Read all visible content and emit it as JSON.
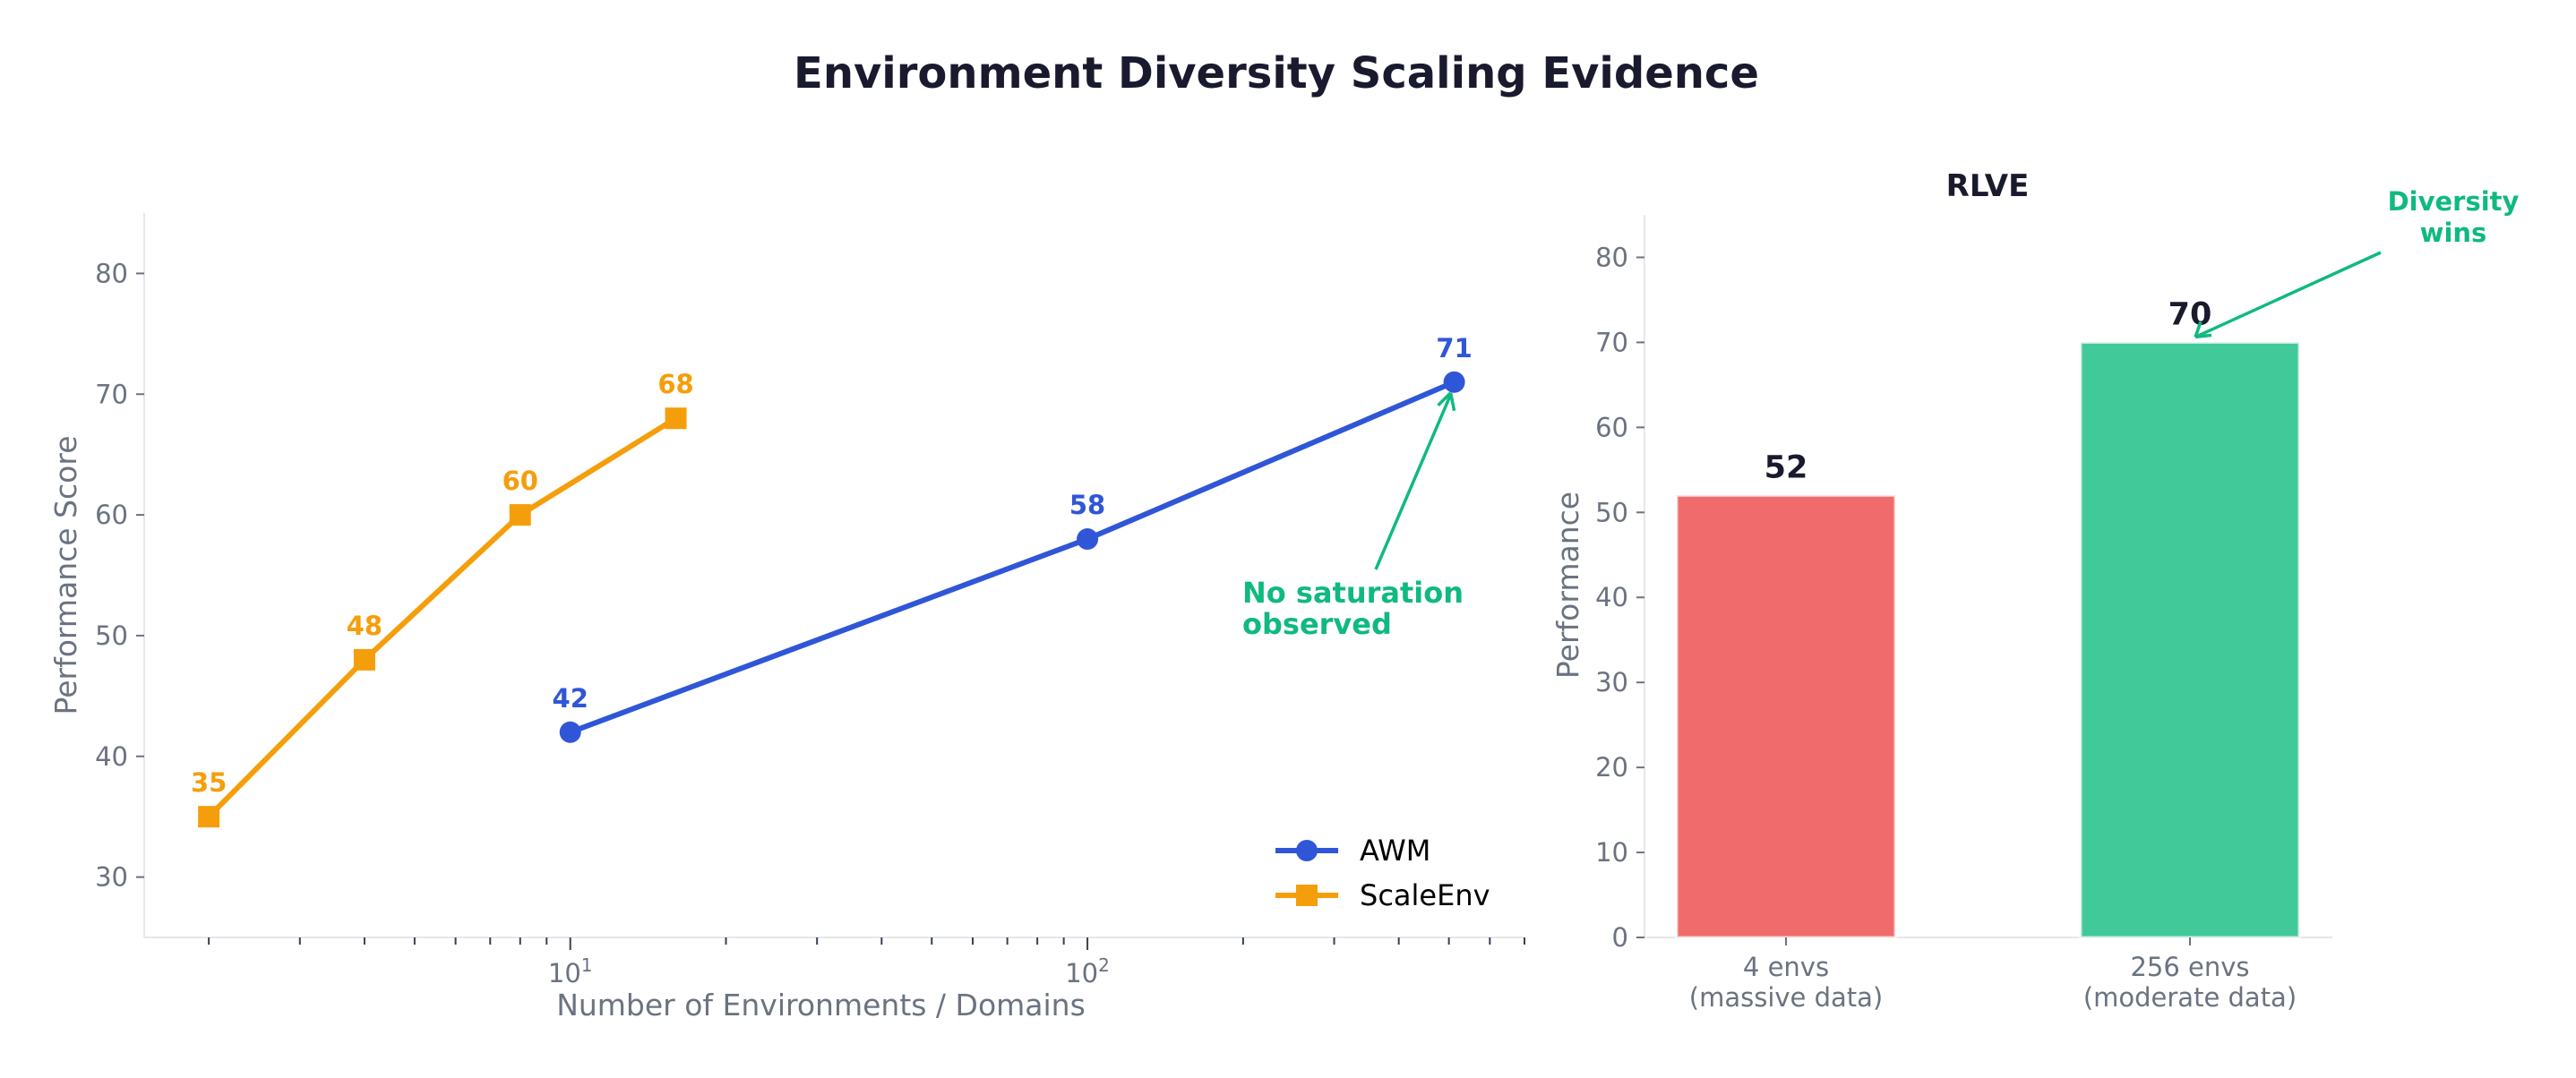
{
  "title": "Environment Diversity Scaling Evidence",
  "colors": {
    "awm": "#3056d8",
    "scaleenv": "#f59e0b",
    "annotation": "#10b981",
    "bar_small": "#f06b6b",
    "bar_large": "#41c99a",
    "title": "#1a1a2e",
    "axis_text": "#6b7280"
  },
  "chart_data": [
    {
      "type": "line",
      "title": "",
      "xlabel": "Number of Environments / Domains",
      "ylabel": "Performance Score",
      "xscale": "log",
      "xlim": [
        1.5,
        700
      ],
      "ylim": [
        25,
        85
      ],
      "x_ticks": [
        {
          "value": 10,
          "base": "10",
          "exp": "1"
        },
        {
          "value": 100,
          "base": "10",
          "exp": "2"
        }
      ],
      "y_ticks": [
        30,
        40,
        50,
        60,
        70,
        80
      ],
      "grid": false,
      "legend": "bottom-right",
      "series": [
        {
          "name": "AWM",
          "marker": "circle",
          "color": "#3056d8",
          "x": [
            10,
            100,
            512
          ],
          "y": [
            42,
            58,
            71
          ],
          "labels": [
            "42",
            "58",
            "71"
          ]
        },
        {
          "name": "ScaleEnv",
          "marker": "square",
          "color": "#f59e0b",
          "x": [
            2,
            4,
            8,
            16
          ],
          "y": [
            35,
            48,
            60,
            68
          ],
          "labels": [
            "35",
            "48",
            "60",
            "68"
          ]
        }
      ],
      "annotation": {
        "text": [
          "No saturation",
          "observed"
        ],
        "points_to": [
          512,
          71
        ]
      }
    },
    {
      "type": "bar",
      "title": "RLVE",
      "xlabel": "",
      "ylabel": "Performance",
      "ylim": [
        0,
        85
      ],
      "y_ticks": [
        0,
        10,
        20,
        30,
        40,
        50,
        60,
        70,
        80
      ],
      "grid": false,
      "categories": [
        [
          "4 envs",
          "(massive data)"
        ],
        [
          "256 envs",
          "(moderate data)"
        ]
      ],
      "values": [
        52,
        70
      ],
      "labels": [
        "52",
        "70"
      ],
      "bar_colors": [
        "#f06b6b",
        "#41c99a"
      ],
      "annotation": {
        "text": [
          "Diversity",
          "wins"
        ],
        "points_to": "256 envs"
      }
    }
  ]
}
